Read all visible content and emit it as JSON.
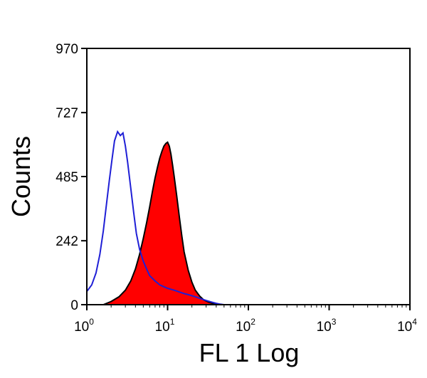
{
  "chart_data": {
    "type": "area",
    "xlabel": "FL 1 Log",
    "ylabel": "Counts",
    "x_scale": "log",
    "xlim": [
      1,
      10000
    ],
    "ylim": [
      0,
      970
    ],
    "x_ticks": [
      {
        "base": "10",
        "exp": "0",
        "value": 1
      },
      {
        "base": "10",
        "exp": "1",
        "value": 10
      },
      {
        "base": "10",
        "exp": "2",
        "value": 100
      },
      {
        "base": "10",
        "exp": "3",
        "value": 1000
      },
      {
        "base": "10",
        "exp": "4",
        "value": 10000
      }
    ],
    "y_ticks": [
      "0",
      "242",
      "485",
      "727",
      "970"
    ],
    "y_tick_values": [
      0,
      242,
      485,
      727,
      970
    ],
    "grid": false,
    "series": [
      {
        "style": "outline",
        "color": "#1f1fd6",
        "x": [
          1.0,
          1.15,
          1.3,
          1.45,
          1.6,
          1.75,
          1.9,
          2.05,
          2.2,
          2.4,
          2.6,
          2.8,
          3.0,
          3.2,
          3.5,
          3.8,
          4.1,
          4.5,
          5.0,
          5.5,
          6.0,
          7.0,
          8.0,
          9.0,
          10.0,
          12.0,
          14.0,
          16.0,
          18.0,
          20.0,
          23.0,
          26.0,
          30.0,
          35.0,
          40.0,
          45.0,
          50.0
        ],
        "y": [
          50,
          75,
          120,
          190,
          280,
          380,
          470,
          550,
          620,
          655,
          640,
          650,
          600,
          540,
          440,
          350,
          270,
          210,
          165,
          135,
          110,
          90,
          75,
          68,
          62,
          55,
          48,
          42,
          38,
          34,
          28,
          22,
          16,
          10,
          5,
          2,
          0
        ]
      },
      {
        "style": "filled",
        "color": "#ff0000",
        "outline_color": "#000000",
        "x": [
          1.6,
          2.0,
          2.5,
          3.0,
          3.5,
          4.0,
          4.5,
          5.0,
          5.5,
          6.0,
          6.5,
          7.0,
          7.5,
          8.0,
          8.5,
          9.0,
          9.5,
          10.0,
          10.5,
          11.0,
          11.5,
          12.0,
          13.0,
          14.0,
          15.0,
          16.0,
          18.0,
          20.0,
          22.0,
          25.0,
          28.0,
          32.0,
          36.0,
          40.0,
          45.0
        ],
        "y": [
          0,
          12,
          30,
          55,
          90,
          135,
          190,
          250,
          310,
          370,
          430,
          480,
          520,
          555,
          580,
          600,
          610,
          615,
          600,
          570,
          530,
          490,
          410,
          330,
          260,
          200,
          130,
          85,
          55,
          32,
          18,
          10,
          5,
          2,
          0
        ]
      }
    ]
  }
}
